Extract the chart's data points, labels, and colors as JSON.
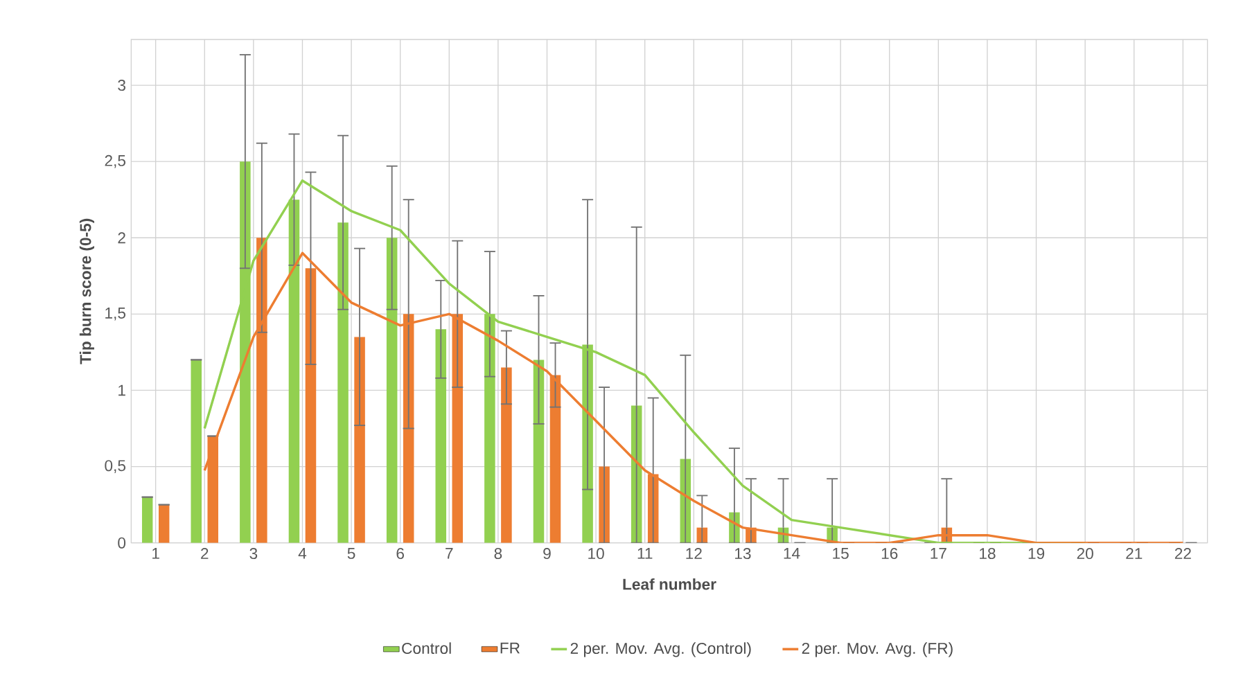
{
  "chart_data": {
    "type": "bar",
    "xlabel": "Leaf number",
    "ylabel": "Tip burn score (0-5)",
    "categories": [
      "1",
      "2",
      "3",
      "4",
      "5",
      "6",
      "7",
      "8",
      "9",
      "10",
      "11",
      "12",
      "13",
      "14",
      "15",
      "16",
      "17",
      "18",
      "19",
      "20",
      "21",
      "22"
    ],
    "series": [
      {
        "name": "Control",
        "color": "#92d050",
        "values": [
          0.3,
          1.2,
          2.5,
          2.25,
          2.1,
          2.0,
          1.4,
          1.5,
          1.2,
          1.3,
          0.9,
          0.55,
          0.2,
          0.1,
          0.1,
          0,
          0,
          0,
          0,
          0,
          0,
          0
        ],
        "errors": [
          null,
          null,
          0.7,
          0.43,
          0.57,
          0.47,
          0.32,
          0.41,
          0.42,
          0.95,
          [
            0,
            2.07
          ],
          [
            0,
            1.23
          ],
          [
            0,
            0.62
          ],
          [
            0,
            0.42
          ],
          [
            0,
            0.42
          ],
          null,
          null,
          null,
          null,
          null,
          null,
          null
        ]
      },
      {
        "name": "FR",
        "color": "#ed7d31",
        "values": [
          0.25,
          0.7,
          2.0,
          1.8,
          1.35,
          1.5,
          1.5,
          1.15,
          1.1,
          0.5,
          0.45,
          0.1,
          0.1,
          0,
          0,
          0,
          0.1,
          0,
          0,
          0,
          0,
          0
        ],
        "errors": [
          null,
          null,
          0.62,
          0.63,
          0.58,
          0.75,
          0.48,
          0.24,
          0.21,
          [
            0,
            1.02
          ],
          [
            0,
            0.95
          ],
          [
            0,
            0.31
          ],
          [
            0,
            0.42
          ],
          null,
          null,
          null,
          [
            0,
            0.42
          ],
          null,
          null,
          null,
          null,
          null
        ]
      },
      {
        "name": "2 per. Mov. Avg. (Control)",
        "type": "line",
        "color": "#92d050",
        "values": [
          null,
          0.75,
          1.85,
          2.375,
          2.175,
          2.05,
          1.7,
          1.45,
          1.35,
          1.25,
          1.1,
          0.725,
          0.375,
          0.15,
          0.1,
          0.05,
          0,
          0,
          0,
          0,
          null,
          null
        ]
      },
      {
        "name": "2 per. Mov. Avg. (FR)",
        "type": "line",
        "color": "#ed7d31",
        "values": [
          null,
          0.475,
          1.35,
          1.9,
          1.575,
          1.425,
          1.5,
          1.325,
          1.125,
          0.8,
          0.475,
          0.275,
          0.1,
          0.05,
          0,
          0,
          0.05,
          0.05,
          0,
          0,
          0,
          0
        ]
      }
    ],
    "ylim": [
      0,
      3.3
    ],
    "yticks": [
      0,
      {
        "value": 0.5,
        "label": "0,5"
      },
      1,
      {
        "value": 1.5,
        "label": "1,5"
      },
      2,
      {
        "value": 2.5,
        "label": "2,5"
      },
      3
    ],
    "grid": true,
    "legend": "bottom"
  }
}
